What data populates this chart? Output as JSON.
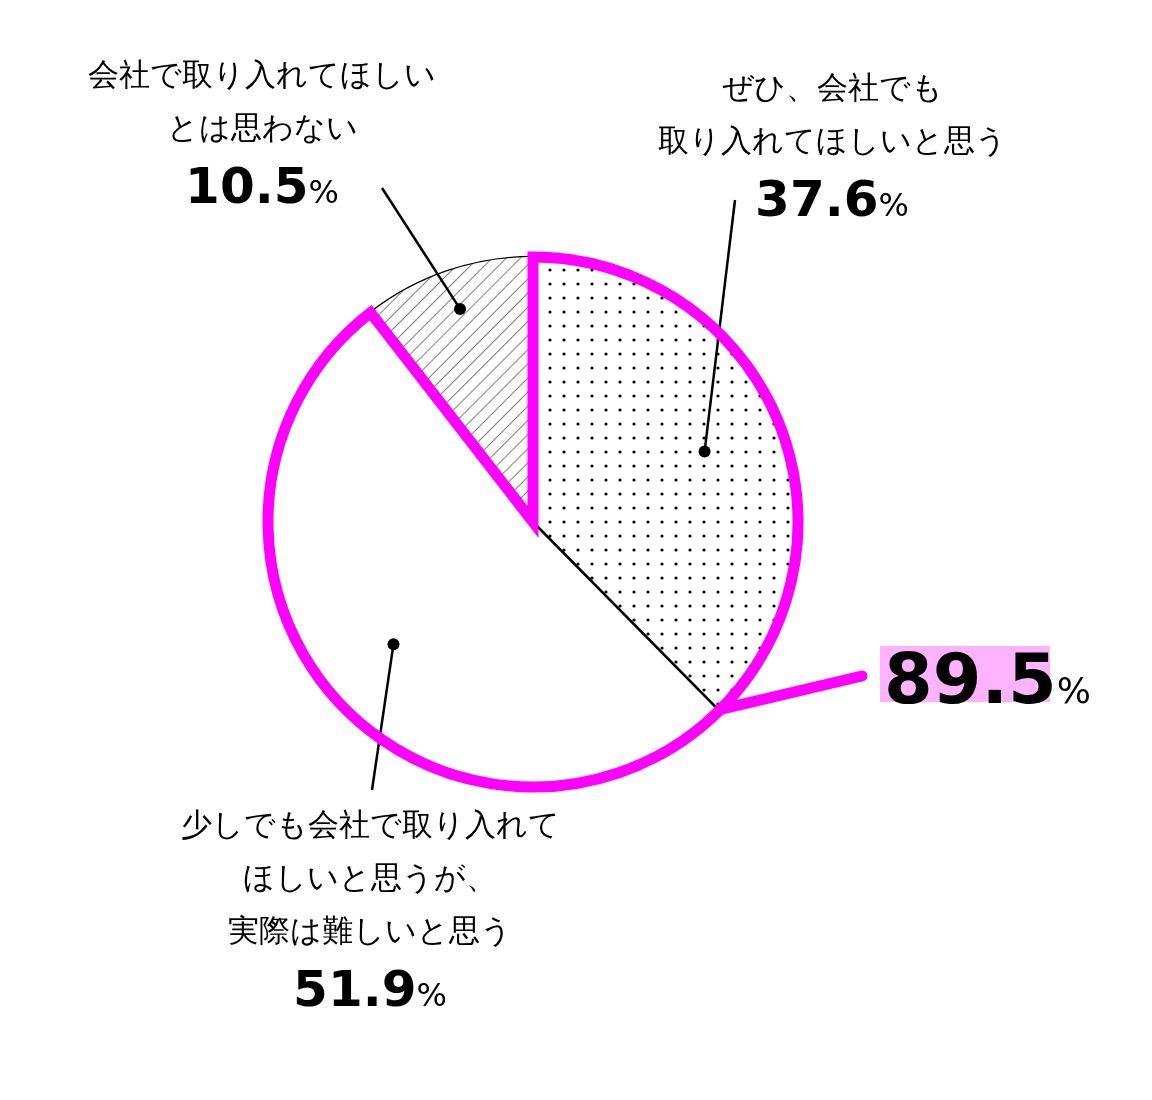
{
  "chart_data": {
    "type": "pie",
    "categories": [
      "ぜひ、会社でも取り入れてほしいと思う",
      "少しでも会社で取り入れてほしいと思うが、実際は難しいと思う",
      "会社で取り入れてほしいとは思わない"
    ],
    "values": [
      37.6,
      51.9,
      10.5
    ],
    "colors": [
      "#ffffff",
      "#ffffff",
      "#ffffff"
    ],
    "value_labels": [
      "37.6%",
      "51.9%",
      "10.5%"
    ],
    "annotations": [
      "89.5%"
    ]
  }
}
